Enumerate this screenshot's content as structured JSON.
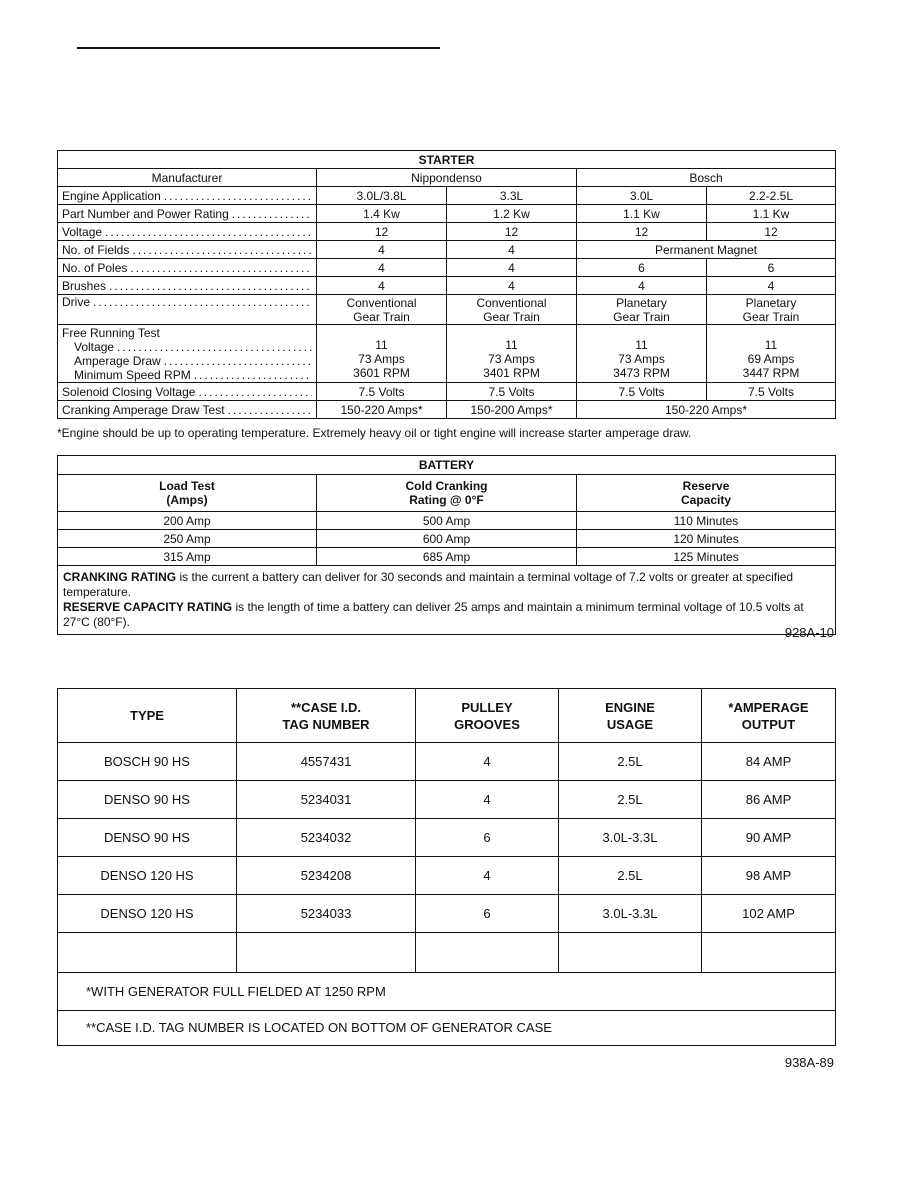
{
  "starter": {
    "title": "STARTER",
    "manufacturer_label": "Manufacturer",
    "manufacturers": [
      "Nippondenso",
      "Bosch"
    ],
    "rows": [
      {
        "label": "Engine Application",
        "cells": [
          "3.0L/3.8L",
          "3.3L",
          "3.0L",
          "2.2-2.5L"
        ]
      },
      {
        "label": "Part Number and Power Rating",
        "cells": [
          "1.4 Kw",
          "1.2 Kw",
          "1.1 Kw",
          "1.1 Kw"
        ]
      },
      {
        "label": "Voltage",
        "cells": [
          "12",
          "12",
          "12",
          "12"
        ]
      },
      {
        "label": "No. of Fields",
        "cells": [
          "4",
          "4",
          "Permanent Magnet"
        ]
      },
      {
        "label": "No. of Poles",
        "cells": [
          "4",
          "4",
          "6",
          "6"
        ]
      },
      {
        "label": "Brushes",
        "cells": [
          "4",
          "4",
          "4",
          "4"
        ]
      },
      {
        "label": "Drive",
        "cells": [
          "Conventional\nGear Train",
          "Conventional\nGear Train",
          "Planetary\nGear Train",
          "Planetary\nGear Train"
        ]
      }
    ],
    "free_running": {
      "title": "Free Running Test",
      "sublabels": [
        "Voltage",
        "Amperage Draw",
        "Minimum Speed RPM"
      ],
      "cells": [
        "11\n73 Amps\n3601 RPM",
        "11\n73 Amps\n3401 RPM",
        "11\n73 Amps\n3473 RPM",
        "11\n69 Amps\n3447 RPM"
      ]
    },
    "rows2": [
      {
        "label": "Solenoid Closing Voltage",
        "cells": [
          "7.5 Volts",
          "7.5 Volts",
          "7.5 Volts",
          "7.5 Volts"
        ]
      },
      {
        "label": "Cranking Amperage Draw Test",
        "cells": [
          "150-220 Amps*",
          "150-200 Amps*",
          "150-220 Amps*"
        ]
      }
    ],
    "footnote": "*Engine should be up to operating temperature. Extremely heavy oil or tight engine will increase starter amperage draw."
  },
  "battery": {
    "title": "BATTERY",
    "headers": [
      "Load Test\n(Amps)",
      "Cold Cranking\nRating @ 0°F",
      "Reserve\nCapacity"
    ],
    "rows": [
      [
        "200 Amp",
        "500 Amp",
        "110 Minutes"
      ],
      [
        "250 Amp",
        "600 Amp",
        "120 Minutes"
      ],
      [
        "315 Amp",
        "685 Amp",
        "125 Minutes"
      ]
    ],
    "notes": [
      {
        "term": "CRANKING RATING",
        "text": " is the current a battery can deliver for 30 seconds and maintain a terminal voltage of 7.2 volts or greater at specified temperature."
      },
      {
        "term": "RESERVE CAPACITY RATING",
        "text": " is the length of time a battery can deliver 25 amps and maintain a minimum terminal voltage of 10.5 volts at 27°C (80°F)."
      }
    ],
    "figure_code": "928A-10"
  },
  "generator": {
    "headers": [
      "TYPE",
      "**CASE I.D.\nTAG NUMBER",
      "PULLEY\nGROOVES",
      "ENGINE\nUSAGE",
      "*AMPERAGE\nOUTPUT"
    ],
    "rows": [
      [
        "BOSCH 90 HS",
        "4557431",
        "4",
        "2.5L",
        "84 AMP"
      ],
      [
        "DENSO 90 HS",
        "5234031",
        "4",
        "2.5L",
        "86 AMP"
      ],
      [
        "DENSO 90 HS",
        "5234032",
        "6",
        "3.0L-3.3L",
        "90 AMP"
      ],
      [
        "DENSO 120 HS",
        "5234208",
        "4",
        "2.5L",
        "98 AMP"
      ],
      [
        "DENSO 120 HS",
        "5234033",
        "6",
        "3.0L-3.3L",
        "102 AMP"
      ],
      [
        "",
        "",
        "",
        "",
        ""
      ]
    ],
    "notes": [
      "*WITH GENERATOR FULL FIELDED AT 1250 RPM",
      "**CASE I.D. TAG NUMBER IS LOCATED ON BOTTOM OF GENERATOR CASE"
    ],
    "figure_code": "938A-89"
  }
}
